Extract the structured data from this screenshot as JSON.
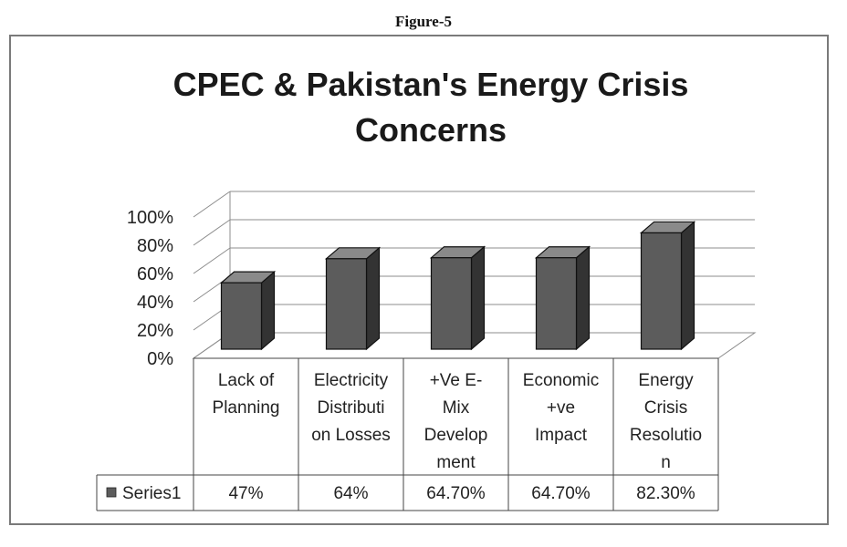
{
  "figure_caption": "Figure-5",
  "chart_data": {
    "type": "bar",
    "title": "CPEC & Pakistan's Energy Crisis Concerns",
    "categories": [
      [
        "Lack of",
        "Planning"
      ],
      [
        "Electricity",
        "Distributi",
        "on Losses"
      ],
      [
        "+Ve E-",
        "Mix",
        "Develop",
        "ment"
      ],
      [
        "Economic",
        "+ve",
        "Impact"
      ],
      [
        "Energy",
        "Crisis",
        "Resolutio",
        "n"
      ]
    ],
    "series": [
      {
        "name": "Series1",
        "values": [
          0.47,
          0.64,
          0.647,
          0.647,
          0.823
        ],
        "labels": [
          "47%",
          "64%",
          "64.70%",
          "64.70%",
          "82.30%"
        ]
      }
    ],
    "ylim": [
      0,
      1
    ],
    "yticks": [
      "0%",
      "20%",
      "40%",
      "60%",
      "80%",
      "100%"
    ],
    "legend": "data-table",
    "grid": true,
    "style": "3d-column",
    "colors": {
      "bar_front": "#5c5c5c",
      "bar_side": "#333333",
      "bar_top": "#8a8a8a",
      "grid": "#8c8c8c"
    }
  }
}
